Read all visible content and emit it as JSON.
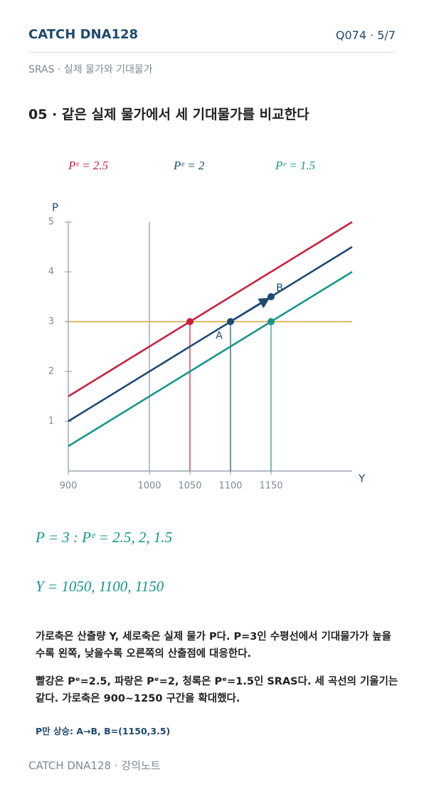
{
  "header": {
    "brand": "CATCH DNA128",
    "page": "Q074 · 5/7",
    "subtitle": "SRAS · 실제 물가와 기대물가"
  },
  "heading": "05 · 같은 실제 물가에서 세 기대물가를 비교한다",
  "chart_data": {
    "type": "line",
    "x_label": "Y",
    "y_label": "P",
    "x": [
      900,
      1250
    ],
    "series": [
      {
        "name": "Pᵉ = 2.5",
        "color": "#c8203f",
        "values": [
          1.5,
          5
        ]
      },
      {
        "name": "Pᵉ = 2",
        "color": "#1e4a72",
        "values": [
          1,
          4.5
        ]
      },
      {
        "name": "Pᵉ = 1.5",
        "color": "#14968c",
        "values": [
          0.5,
          4
        ]
      }
    ],
    "points": [
      {
        "x": 1050,
        "y": 3,
        "color": "#c8203f"
      },
      {
        "x": 1100,
        "y": 3,
        "color": "#1e4a72",
        "label": "A"
      },
      {
        "x": 1150,
        "y": 3,
        "color": "#14968c"
      },
      {
        "x": 1150,
        "y": 3.5,
        "color": "#1e4a72",
        "label": "B"
      }
    ],
    "reference_y": {
      "value": 3,
      "color": "#d9a23a"
    },
    "reference_x": {
      "value": 1000,
      "color": "#8a98a4"
    },
    "xlim": [
      900,
      1250
    ],
    "ylim": [
      0,
      5
    ],
    "xticks": [
      900,
      1000,
      1050,
      1100,
      1150
    ],
    "yticks": [
      1,
      2,
      3,
      4,
      5
    ]
  },
  "equations": [
    "P = 3 :   Pᵉ = 2.5,  2,  1.5",
    "Y = 1050,  1100,  1150"
  ],
  "paragraphs": [
    "가로축은 산출량 Y, 세로축은 실제 물가 P다. P=3인 수평선에서 기대물가가 높을수록 왼쪽, 낮을수록 오른쪽의 산출점에 대응한다.",
    "빨강은 Pᵉ=2.5, 파랑은 Pᵉ=2, 청록은 Pᵉ=1.5인 SRAS다. 세 곡선의 기울기는 같다. 가로축은 900~1250 구간을 확대했다.",
    "P만 상승: A→B, B=(1150,3.5)"
  ],
  "footer": "CATCH DNA128 · 강의노트"
}
